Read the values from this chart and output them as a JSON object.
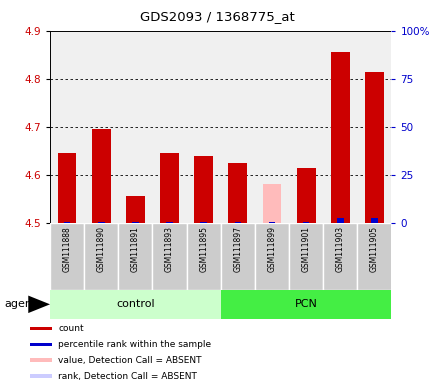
{
  "title": "GDS2093 / 1368775_at",
  "samples": [
    "GSM111888",
    "GSM111890",
    "GSM111891",
    "GSM111893",
    "GSM111895",
    "GSM111897",
    "GSM111899",
    "GSM111901",
    "GSM111903",
    "GSM111905"
  ],
  "count_values": [
    4.645,
    4.695,
    4.555,
    4.645,
    4.64,
    4.625,
    4.58,
    4.615,
    4.855,
    4.815
  ],
  "count_absent": [
    false,
    false,
    false,
    false,
    false,
    false,
    true,
    false,
    false,
    false
  ],
  "percentile_values": [
    0.5,
    0.5,
    0.5,
    0.5,
    0.5,
    0.5,
    0.5,
    0.5,
    2.5,
    2.5
  ],
  "groups": [
    {
      "label": "control",
      "start": 0,
      "end": 4,
      "color": "#ccffcc"
    },
    {
      "label": "PCN",
      "start": 5,
      "end": 9,
      "color": "#44ee44"
    }
  ],
  "ylim_left": [
    4.5,
    4.9
  ],
  "ylim_right": [
    0,
    100
  ],
  "yticks_left": [
    4.5,
    4.6,
    4.7,
    4.8,
    4.9
  ],
  "yticks_right": [
    0,
    25,
    50,
    75,
    100
  ],
  "ytick_labels_right": [
    "0",
    "25",
    "50",
    "75",
    "100%"
  ],
  "color_red": "#cc0000",
  "color_pink": "#ffbbbb",
  "color_blue": "#0000cc",
  "color_lightblue": "#ccccff",
  "bg_plot": "#f0f0f0",
  "bg_cell": "#cccccc",
  "bg_white": "#ffffff",
  "legend_items": [
    {
      "color": "#cc0000",
      "label": "count"
    },
    {
      "color": "#0000cc",
      "label": "percentile rank within the sample"
    },
    {
      "color": "#ffbbbb",
      "label": "value, Detection Call = ABSENT"
    },
    {
      "color": "#ccccff",
      "label": "rank, Detection Call = ABSENT"
    }
  ],
  "agent_label": "agent",
  "bar_width": 0.55,
  "bar_bottom": 4.5
}
